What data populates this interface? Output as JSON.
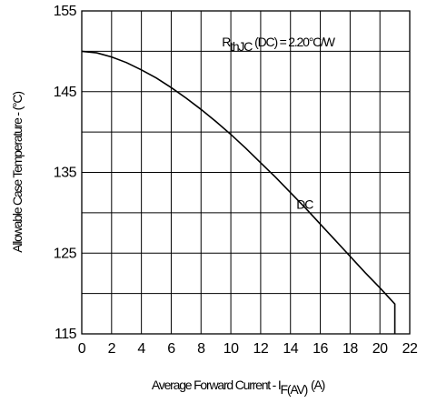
{
  "chart_data": {
    "type": "line",
    "xlabel": "Average Forward Current - I",
    "xlabel_sub": "F(AV)",
    "xlabel_unit": "(A)",
    "ylabel": "Allowable Case Temperature - (°C)",
    "xlim": [
      0,
      22
    ],
    "ylim": [
      115,
      155
    ],
    "x_ticks": [
      "0",
      "2",
      "4",
      "6",
      "8",
      "10",
      "12",
      "14",
      "16",
      "18",
      "20",
      "22"
    ],
    "y_ticks": [
      "115",
      "125",
      "135",
      "145",
      "155"
    ],
    "grid": true,
    "annotation": {
      "prefix": "R",
      "sub": "thJC",
      "suffix": "(DC) = 2.20°C/W"
    },
    "series": [
      {
        "name": "DC",
        "x": [
          0,
          1,
          2,
          3,
          4,
          5,
          6,
          7,
          8,
          9,
          10,
          11,
          12,
          13,
          14,
          15,
          16,
          17,
          18,
          19,
          20,
          21,
          21
        ],
        "y": [
          150,
          149.8,
          149.3,
          148.6,
          147.7,
          146.7,
          145.5,
          144.2,
          142.8,
          141.3,
          139.7,
          138,
          136.2,
          134.4,
          132.5,
          130.6,
          128.6,
          126.6,
          124.6,
          122.6,
          120.7,
          118.7,
          115
        ]
      }
    ]
  }
}
